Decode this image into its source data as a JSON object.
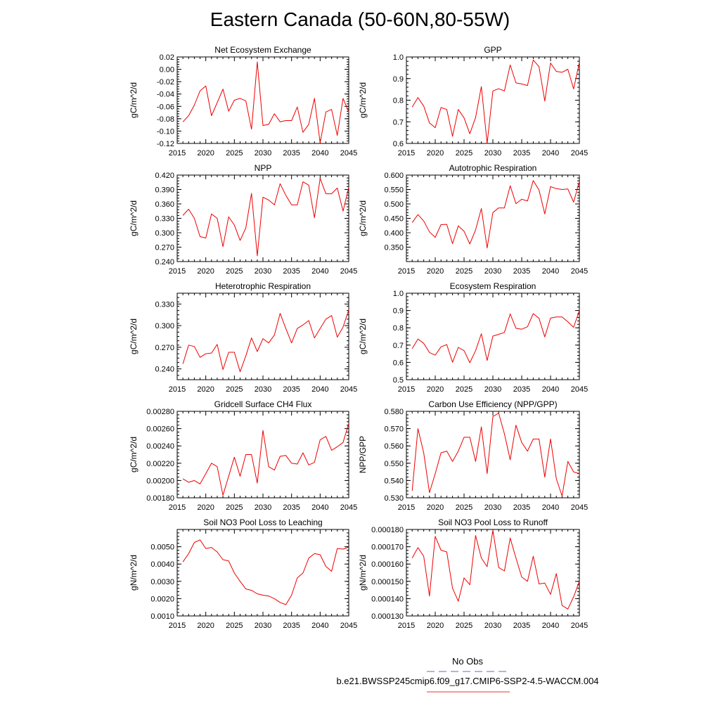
{
  "title": "Eastern Canada (50-60N,80-55W)",
  "legend": {
    "entries": [
      {
        "label": "No Obs",
        "color": "#6666cc",
        "dash": true
      },
      {
        "label": "b.e21.BWSSP245cmip6.f09_g17.CMIP6-SSP2-4.5-WACCM.004",
        "color": "#ee3333",
        "dash": false
      }
    ]
  },
  "chart_data": [
    {
      "type": "line",
      "title": "Net Ecosystem Exchange",
      "ylabel": "gC/m^2/d",
      "xlim": [
        2015,
        2045
      ],
      "ylim": [
        -0.12,
        0.02
      ],
      "xticks": [
        2015,
        2020,
        2025,
        2030,
        2035,
        2040,
        2045
      ],
      "yticks": [
        "-0.12",
        "-0.10",
        "-0.08",
        "-0.06",
        "-0.04",
        "-0.02",
        "0.00",
        "0.02"
      ],
      "x": [
        2016,
        2017,
        2018,
        2019,
        2020,
        2021,
        2022,
        2023,
        2024,
        2025,
        2026,
        2027,
        2028,
        2029,
        2030,
        2031,
        2032,
        2033,
        2034,
        2035,
        2036,
        2037,
        2038,
        2039,
        2040,
        2041,
        2042,
        2043,
        2044,
        2045
      ],
      "series": [
        {
          "color": "#ee0000",
          "values": [
            -0.085,
            -0.075,
            -0.058,
            -0.035,
            -0.027,
            -0.075,
            -0.054,
            -0.032,
            -0.068,
            -0.05,
            -0.047,
            -0.051,
            -0.097,
            0.012,
            -0.091,
            -0.089,
            -0.072,
            -0.085,
            -0.083,
            -0.083,
            -0.061,
            -0.102,
            -0.089,
            -0.047,
            -0.119,
            -0.069,
            -0.065,
            -0.107,
            -0.047,
            -0.069
          ]
        }
      ]
    },
    {
      "type": "line",
      "title": "GPP",
      "ylabel": "gC/m^2/d",
      "xlim": [
        2015,
        2045
      ],
      "ylim": [
        0.6,
        1.0
      ],
      "xticks": [
        2015,
        2020,
        2025,
        2030,
        2035,
        2040,
        2045
      ],
      "yticks": [
        "0.6",
        "0.7",
        "0.8",
        "0.9",
        "1.0"
      ],
      "x": [
        2016,
        2017,
        2018,
        2019,
        2020,
        2021,
        2022,
        2023,
        2024,
        2025,
        2026,
        2027,
        2028,
        2029,
        2030,
        2031,
        2032,
        2033,
        2034,
        2035,
        2036,
        2037,
        2038,
        2039,
        2040,
        2041,
        2042,
        2043,
        2044,
        2045
      ],
      "series": [
        {
          "color": "#ee0000",
          "values": [
            0.768,
            0.812,
            0.773,
            0.695,
            0.673,
            0.766,
            0.757,
            0.633,
            0.757,
            0.718,
            0.645,
            0.72,
            0.863,
            0.6,
            0.843,
            0.853,
            0.843,
            0.963,
            0.88,
            0.875,
            0.868,
            0.986,
            0.955,
            0.796,
            0.972,
            0.933,
            0.929,
            0.943,
            0.852,
            0.975
          ]
        }
      ]
    },
    {
      "type": "line",
      "title": "NPP",
      "ylabel": "gC/m^2/d",
      "xlim": [
        2015,
        2045
      ],
      "ylim": [
        0.24,
        0.42
      ],
      "xticks": [
        2015,
        2020,
        2025,
        2030,
        2035,
        2040,
        2045
      ],
      "yticks": [
        "0.240",
        "0.270",
        "0.300",
        "0.330",
        "0.360",
        "0.390",
        "0.420"
      ],
      "x": [
        2016,
        2017,
        2018,
        2019,
        2020,
        2021,
        2022,
        2023,
        2024,
        2025,
        2026,
        2027,
        2028,
        2029,
        2030,
        2031,
        2032,
        2033,
        2034,
        2035,
        2036,
        2037,
        2038,
        2039,
        2040,
        2041,
        2042,
        2043,
        2044,
        2045
      ],
      "series": [
        {
          "color": "#ee0000",
          "values": [
            0.336,
            0.349,
            0.33,
            0.292,
            0.289,
            0.339,
            0.33,
            0.271,
            0.333,
            0.316,
            0.284,
            0.31,
            0.382,
            0.252,
            0.374,
            0.368,
            0.358,
            0.402,
            0.378,
            0.358,
            0.358,
            0.406,
            0.399,
            0.331,
            0.413,
            0.381,
            0.381,
            0.393,
            0.345,
            0.395
          ]
        }
      ]
    },
    {
      "type": "line",
      "title": "Autotrophic Respiration",
      "ylabel": "gC/m^2/d",
      "xlim": [
        2015,
        2045
      ],
      "ylim": [
        0.3,
        0.6
      ],
      "xticks": [
        2015,
        2020,
        2025,
        2030,
        2035,
        2040,
        2045
      ],
      "yticks": [
        "0.350",
        "0.400",
        "0.450",
        "0.500",
        "0.550",
        "0.600"
      ],
      "x": [
        2016,
        2017,
        2018,
        2019,
        2020,
        2021,
        2022,
        2023,
        2024,
        2025,
        2026,
        2027,
        2028,
        2029,
        2030,
        2031,
        2032,
        2033,
        2034,
        2035,
        2036,
        2037,
        2038,
        2039,
        2040,
        2041,
        2042,
        2043,
        2044,
        2045
      ],
      "series": [
        {
          "color": "#ee0000",
          "values": [
            0.435,
            0.463,
            0.441,
            0.403,
            0.384,
            0.428,
            0.429,
            0.362,
            0.424,
            0.405,
            0.361,
            0.41,
            0.484,
            0.347,
            0.47,
            0.486,
            0.486,
            0.563,
            0.501,
            0.516,
            0.51,
            0.581,
            0.548,
            0.465,
            0.56,
            0.553,
            0.55,
            0.552,
            0.506,
            0.578
          ]
        }
      ]
    },
    {
      "type": "line",
      "title": "Heterotrophic Respiration",
      "ylabel": "gC/m^2/d",
      "xlim": [
        2015,
        2045
      ],
      "ylim": [
        0.225,
        0.345
      ],
      "xticks": [
        2015,
        2020,
        2025,
        2030,
        2035,
        2040,
        2045
      ],
      "yticks": [
        "0.240",
        "0.270",
        "0.300",
        "0.330"
      ],
      "x": [
        2016,
        2017,
        2018,
        2019,
        2020,
        2021,
        2022,
        2023,
        2024,
        2025,
        2026,
        2027,
        2028,
        2029,
        2030,
        2031,
        2032,
        2033,
        2034,
        2035,
        2036,
        2037,
        2038,
        2039,
        2040,
        2041,
        2042,
        2043,
        2044,
        2045
      ],
      "series": [
        {
          "color": "#ee0000",
          "values": [
            0.247,
            0.273,
            0.271,
            0.256,
            0.261,
            0.262,
            0.274,
            0.239,
            0.263,
            0.263,
            0.236,
            0.258,
            0.283,
            0.264,
            0.282,
            0.276,
            0.287,
            0.317,
            0.296,
            0.276,
            0.296,
            0.301,
            0.307,
            0.283,
            0.296,
            0.309,
            0.314,
            0.284,
            0.298,
            0.322
          ]
        }
      ]
    },
    {
      "type": "line",
      "title": "Ecosystem Respiration",
      "ylabel": "gC/m^2/d",
      "xlim": [
        2015,
        2045
      ],
      "ylim": [
        0.5,
        1.0
      ],
      "xticks": [
        2015,
        2020,
        2025,
        2030,
        2035,
        2040,
        2045
      ],
      "yticks": [
        "0.5",
        "0.6",
        "0.7",
        "0.8",
        "0.9",
        "1.0"
      ],
      "x": [
        2016,
        2017,
        2018,
        2019,
        2020,
        2021,
        2022,
        2023,
        2024,
        2025,
        2026,
        2027,
        2028,
        2029,
        2030,
        2031,
        2032,
        2033,
        2034,
        2035,
        2036,
        2037,
        2038,
        2039,
        2040,
        2041,
        2042,
        2043,
        2044,
        2045
      ],
      "series": [
        {
          "color": "#ee0000",
          "values": [
            0.68,
            0.735,
            0.71,
            0.657,
            0.642,
            0.69,
            0.703,
            0.601,
            0.687,
            0.668,
            0.598,
            0.668,
            0.766,
            0.611,
            0.752,
            0.762,
            0.773,
            0.88,
            0.797,
            0.792,
            0.806,
            0.882,
            0.855,
            0.747,
            0.856,
            0.863,
            0.863,
            0.835,
            0.803,
            0.9
          ]
        }
      ]
    },
    {
      "type": "line",
      "title": "Gridcell Surface CH4 Flux",
      "ylabel": "gC/m^2/d",
      "xlim": [
        2015,
        2045
      ],
      "ylim": [
        0.0018,
        0.0028
      ],
      "xticks": [
        2015,
        2020,
        2025,
        2030,
        2035,
        2040,
        2045
      ],
      "yticks": [
        "0.00180",
        "0.00200",
        "0.00220",
        "0.00240",
        "0.00260",
        "0.00280"
      ],
      "x": [
        2016,
        2017,
        2018,
        2019,
        2020,
        2021,
        2022,
        2023,
        2024,
        2025,
        2026,
        2027,
        2028,
        2029,
        2030,
        2031,
        2032,
        2033,
        2034,
        2035,
        2036,
        2037,
        2038,
        2039,
        2040,
        2041,
        2042,
        2043,
        2044,
        2045
      ],
      "series": [
        {
          "color": "#ee0000",
          "values": [
            0.00202,
            0.00198,
            0.002,
            0.00196,
            0.00208,
            0.0022,
            0.00216,
            0.00183,
            0.00205,
            0.00227,
            0.00205,
            0.0023,
            0.0023,
            0.00197,
            0.00258,
            0.00216,
            0.00212,
            0.00228,
            0.00229,
            0.0022,
            0.00219,
            0.00232,
            0.00218,
            0.00221,
            0.00247,
            0.00251,
            0.00235,
            0.00239,
            0.00244,
            0.00266
          ]
        }
      ]
    },
    {
      "type": "line",
      "title": "Carbon Use Efficiency (NPP/GPP)",
      "ylabel": "NPP/GPP",
      "xlim": [
        2015,
        2045
      ],
      "ylim": [
        0.53,
        0.58
      ],
      "xticks": [
        2015,
        2020,
        2025,
        2030,
        2035,
        2040,
        2045
      ],
      "yticks": [
        "0.530",
        "0.540",
        "0.550",
        "0.560",
        "0.570",
        "0.580"
      ],
      "x": [
        2016,
        2017,
        2018,
        2019,
        2020,
        2021,
        2022,
        2023,
        2024,
        2025,
        2026,
        2027,
        2028,
        2029,
        2030,
        2031,
        2032,
        2033,
        2034,
        2035,
        2036,
        2037,
        2038,
        2039,
        2040,
        2041,
        2042,
        2043,
        2044,
        2045
      ],
      "series": [
        {
          "color": "#ee0000",
          "values": [
            0.534,
            0.57,
            0.556,
            0.533,
            0.544,
            0.556,
            0.557,
            0.551,
            0.557,
            0.565,
            0.565,
            0.551,
            0.571,
            0.544,
            0.577,
            0.579,
            0.567,
            0.552,
            0.572,
            0.562,
            0.557,
            0.564,
            0.564,
            0.542,
            0.564,
            0.541,
            0.531,
            0.551,
            0.545,
            0.544
          ]
        }
      ]
    },
    {
      "type": "line",
      "title": "Soil NO3 Pool Loss to Leaching",
      "ylabel": "gN/m^2/d",
      "xlim": [
        2015,
        2045
      ],
      "ylim": [
        0.001,
        0.006
      ],
      "xticks": [
        2015,
        2020,
        2025,
        2030,
        2035,
        2040,
        2045
      ],
      "yticks": [
        "0.0010",
        "0.0020",
        "0.0030",
        "0.0040",
        "0.0050"
      ],
      "x": [
        2016,
        2017,
        2018,
        2019,
        2020,
        2021,
        2022,
        2023,
        2024,
        2025,
        2026,
        2027,
        2028,
        2029,
        2030,
        2031,
        2032,
        2033,
        2034,
        2035,
        2036,
        2037,
        2038,
        2039,
        2040,
        2041,
        2042,
        2043,
        2044,
        2045
      ],
      "series": [
        {
          "color": "#ee0000",
          "values": [
            0.00412,
            0.0046,
            0.00525,
            0.0054,
            0.0049,
            0.00496,
            0.0047,
            0.00425,
            0.00418,
            0.00348,
            0.003,
            0.00256,
            0.00248,
            0.00228,
            0.0022,
            0.00215,
            0.002,
            0.00178,
            0.00165,
            0.0022,
            0.0032,
            0.00348,
            0.00434,
            0.0046,
            0.00454,
            0.00386,
            0.00358,
            0.0049,
            0.00486,
            0.00498
          ]
        }
      ]
    },
    {
      "type": "line",
      "title": "Soil NO3 Pool Loss to Runoff",
      "ylabel": "gN/m^2/d",
      "xlim": [
        2015,
        2045
      ],
      "ylim": [
        0.00013,
        0.00018
      ],
      "xticks": [
        2015,
        2020,
        2025,
        2030,
        2035,
        2040,
        2045
      ],
      "yticks": [
        "0.000130",
        "0.000140",
        "0.000150",
        "0.000160",
        "0.000170",
        "0.000180"
      ],
      "x": [
        2016,
        2017,
        2018,
        2019,
        2020,
        2021,
        2022,
        2023,
        2024,
        2025,
        2026,
        2027,
        2028,
        2029,
        2030,
        2031,
        2032,
        2033,
        2034,
        2035,
        2036,
        2037,
        2038,
        2039,
        2040,
        2041,
        2042,
        2043,
        2044,
        2045
      ],
      "series": [
        {
          "color": "#ee0000",
          "values": [
            0.0001635,
            0.0001695,
            0.0001645,
            0.0001415,
            0.000176,
            0.000168,
            0.000167,
            0.000146,
            0.0001385,
            0.000152,
            0.000148,
            0.0001765,
            0.0001635,
            0.0001585,
            0.0001795,
            0.000158,
            0.000156,
            0.000175,
            0.0001635,
            0.0001525,
            0.00015,
            0.0001645,
            0.0001485,
            0.000149,
            0.0001425,
            0.0001545,
            0.000136,
            0.000134,
            0.000141,
            0.00015
          ]
        }
      ]
    }
  ]
}
